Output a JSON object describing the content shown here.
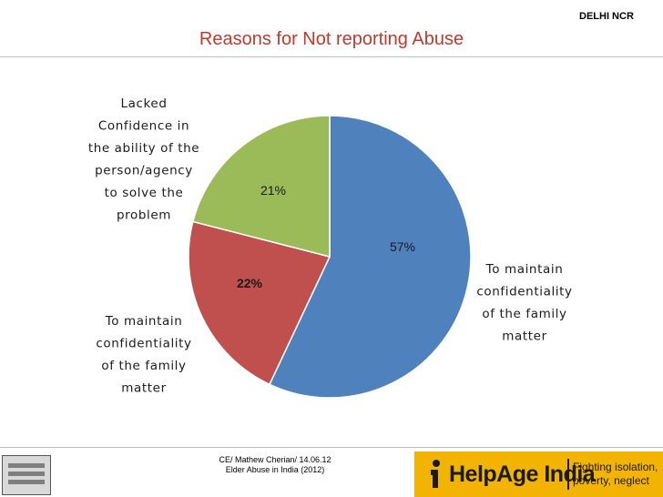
{
  "header": {
    "region": "DELHI NCR"
  },
  "chart_data": {
    "type": "pie",
    "title": "Reasons for Not reporting Abuse",
    "slices": [
      {
        "label": "To maintain confidentiality of the family matter",
        "value": 57,
        "value_label": "57%",
        "color": "#4f81bd",
        "label_lines": [
          "To maintain",
          "confidentiality",
          "of the family",
          "matter"
        ]
      },
      {
        "label": "To maintain confidentiality of the family matter",
        "value": 22,
        "value_label": "22%",
        "color": "#c0504d",
        "label_lines": [
          "To maintain",
          "confidentiality",
          "of the family",
          "matter"
        ]
      },
      {
        "label": "Lacked Confidence in the ability of the person/agency to solve the problem",
        "value": 21,
        "value_label": "21%",
        "color": "#9bbb59",
        "label_lines": [
          "Lacked",
          "Confidence in",
          "the ability of the",
          "person/agency",
          "to solve the",
          "problem"
        ]
      }
    ]
  },
  "footer": {
    "credit_line1": "CE/ Mathew Cherian/ 14.06.12",
    "credit_line2": "Elder Abuse in India (2012)",
    "brand_name": "HelpAge India",
    "tagline_line1": "Fighting isolation,",
    "tagline_line2": "poverty, neglect",
    "brand_color": "#f2b400"
  }
}
